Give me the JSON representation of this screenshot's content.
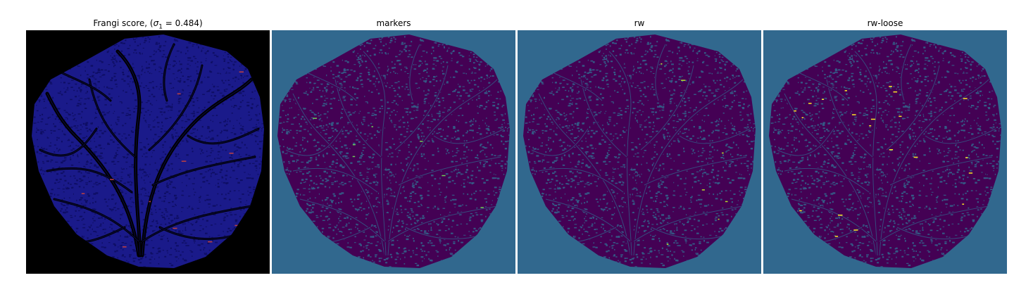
{
  "panels": [
    {
      "title_prefix": "Frangi score, (",
      "title_sigma": "σ",
      "title_sub": "1",
      "title_suffix": " = 0.484)",
      "background": "#000000",
      "disc_color": "#1a1a8a",
      "texture_color": "#0d0d60",
      "vessel_color": "#000000",
      "highlight_color": "#c04040"
    },
    {
      "title": "markers",
      "background": "#31688e",
      "disc_color": "#440154",
      "texture_color": "#31688e",
      "vessel_color": "#440154",
      "highlight_color": "#6ece58"
    },
    {
      "title": "rw",
      "background": "#31688e",
      "disc_color": "#440154",
      "texture_color": "#31688e",
      "vessel_color": "#440154",
      "highlight_color": "#b5de2b"
    },
    {
      "title": "rw-loose",
      "background": "#31688e",
      "disc_color": "#440154",
      "texture_color": "#31688e",
      "vessel_color": "#440154",
      "highlight_color": "#fde725"
    }
  ]
}
